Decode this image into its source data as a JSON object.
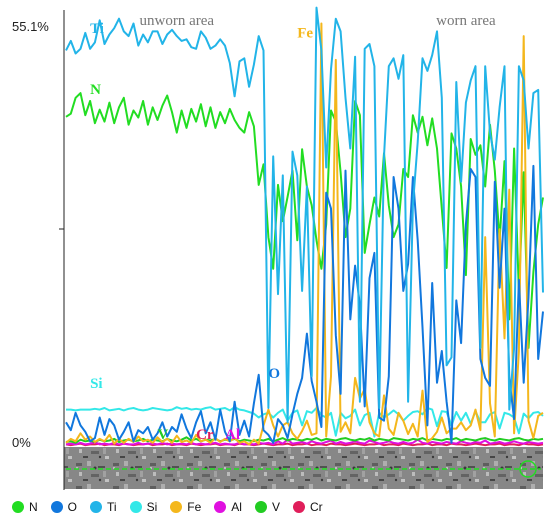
{
  "chart_data": {
    "type": "line",
    "y_tick_labels": [
      "55.1%",
      "0%"
    ],
    "ylim": [
      0,
      55.1
    ],
    "x": [
      1,
      2,
      3,
      4,
      5,
      6,
      7,
      8,
      9,
      10,
      11,
      12,
      13,
      14,
      15,
      16,
      17,
      18,
      19,
      20,
      21,
      22,
      23,
      24,
      25,
      26,
      27,
      28,
      29,
      30,
      31,
      32,
      33,
      34,
      35,
      36,
      37,
      38,
      39,
      40,
      41,
      42,
      43,
      44,
      45,
      46,
      47,
      48,
      49,
      50,
      51,
      52,
      53,
      54,
      55,
      56,
      57,
      58,
      59,
      60,
      61,
      62,
      63,
      64,
      65,
      66,
      67,
      68,
      69,
      70,
      71,
      72,
      73,
      74,
      75,
      76,
      77,
      78,
      79,
      80,
      81,
      82,
      83,
      84,
      85,
      86,
      87,
      88,
      89,
      90,
      91,
      92,
      93,
      94,
      95,
      96,
      97,
      98,
      99,
      100
    ],
    "region_labels": [
      {
        "text": "unworn area",
        "x": 24
      },
      {
        "text": "worn area",
        "x": 84
      }
    ],
    "series": [
      {
        "name": "N",
        "color": "#22dd22",
        "label_x": 6,
        "label_y": 44.5,
        "values": [
          41.6,
          42,
          44,
          44.6,
          41.8,
          43.6,
          40.8,
          42.5,
          41,
          43.4,
          40.8,
          42.8,
          44,
          40.6,
          42.4,
          41.5,
          43.6,
          40.6,
          42.8,
          41.2,
          43,
          44.3,
          42.2,
          39.6,
          42.4,
          40.2,
          42.6,
          41,
          43.2,
          40.4,
          42.8,
          40.2,
          42.2,
          40.8,
          42.6,
          41.2,
          40.2,
          39.6,
          42.2,
          40.4,
          33,
          35.6,
          26.4,
          22.4,
          33,
          28.4,
          31.5,
          34.8,
          26,
          37.5,
          32.8,
          30.4,
          26,
          22.4,
          28,
          42.4,
          41,
          34.6,
          26.4,
          30,
          43.6,
          41.8,
          24.4,
          28,
          31.4,
          29,
          37,
          30.4,
          26.4,
          28,
          35,
          34,
          41.8,
          39.6,
          41.6,
          38,
          41.4,
          37.6,
          30,
          22.5,
          39.5,
          37.6,
          32.8,
          21.6,
          38.8,
          36.8,
          38,
          32.8,
          40.6,
          34.8,
          26,
          36,
          16,
          37.6,
          19.4,
          34.6,
          12.4,
          22,
          28,
          31.4
        ]
      },
      {
        "name": "O",
        "color": "#1177dd",
        "label_x": 43,
        "label_y": 8.6,
        "values": [
          3,
          2,
          4.2,
          2.6,
          1.8,
          0.6,
          1,
          3.6,
          1.4,
          3.4,
          2.6,
          0.8,
          1.8,
          3,
          0.6,
          2,
          1.6,
          2.4,
          0.8,
          1.6,
          3,
          1.2,
          2.4,
          1.8,
          4,
          2.2,
          1,
          3,
          4.4,
          1.6,
          3,
          0.8,
          4.6,
          1.8,
          0.6,
          5.6,
          1.4,
          3.2,
          1.2,
          5.4,
          9,
          2,
          1.4,
          0.4,
          3.4,
          2.6,
          1,
          4,
          6.6,
          8.6,
          14.2,
          8.2,
          5.6,
          2.4,
          32,
          30,
          14,
          6.6,
          34.8,
          16,
          22.8,
          17.8,
          5,
          21.2,
          24.4,
          3.6,
          3.2,
          8.8,
          34,
          30,
          19.6,
          23,
          34,
          26,
          15,
          2.6,
          20.6,
          8,
          12,
          5.6,
          0.4,
          18.4,
          13,
          28,
          35,
          34,
          11,
          8.6,
          7.6,
          33.4,
          20,
          30,
          8.6,
          3.4,
          21,
          8,
          18.8,
          35.4,
          11,
          17
        ]
      },
      {
        "name": "Ti",
        "color": "#22b4e8",
        "label_x": 6,
        "label_y": 52.2,
        "values": [
          50,
          51.2,
          49.6,
          50.2,
          52.2,
          50.2,
          51,
          53.8,
          50.8,
          52,
          52.8,
          54,
          52.4,
          51.8,
          53.4,
          50.6,
          52,
          51,
          52.4,
          52.4,
          50.8,
          52,
          52.6,
          51.8,
          51.2,
          51.4,
          50.4,
          50.2,
          52.4,
          51.6,
          50.2,
          50.6,
          51.4,
          50.6,
          48.4,
          44.2,
          48.6,
          49,
          45.4,
          48.2,
          51.8,
          50,
          4.8,
          36.6,
          19.2,
          34.2,
          3,
          37.2,
          34.2,
          19.6,
          32.8,
          8.8,
          55.4,
          50,
          35.2,
          47.6,
          54,
          52.4,
          44,
          37.6,
          49.2,
          5.6,
          50.2,
          50.8,
          48,
          4.8,
          36.6,
          48,
          49,
          46.4,
          49.4,
          5.6,
          30.4,
          38.4,
          49,
          47.4,
          49.4,
          52.4,
          44,
          10.2,
          11.2,
          46,
          33.4,
          43.4,
          46.2,
          48,
          12.4,
          48,
          39.6,
          36.2,
          42.8,
          48,
          4.6,
          12.4,
          48,
          46.2,
          37.6,
          44.6,
          45,
          19.4
        ]
      },
      {
        "name": "Si",
        "color": "#33e8e8",
        "label_x": 6,
        "label_y": 7.3,
        "values": [
          4.6,
          4.6,
          4.5,
          4.6,
          4.6,
          4.6,
          4.7,
          4.6,
          4.8,
          4.5,
          4.6,
          4.7,
          4.5,
          4.7,
          4.8,
          4.6,
          4.5,
          4.6,
          4.8,
          4.7,
          4.6,
          4.5,
          4.6,
          4.9,
          4.7,
          4.8,
          4.6,
          4.7,
          4.6,
          4.8,
          4.9,
          4.6,
          4.7,
          4.8,
          4.5,
          4.9,
          4.6,
          4.5,
          4.3,
          4.1,
          3.6,
          4,
          4.2,
          3.6,
          4.2,
          4.6,
          3.2,
          4.2,
          4.5,
          2.6,
          4.4,
          4.2,
          4.8,
          3.9,
          3.6,
          4.2,
          1.3,
          4.2,
          3.5,
          3.8,
          4.6,
          2.6,
          3.9,
          4.2,
          1.2,
          4.2,
          3.6,
          4,
          4.5,
          4,
          3.2,
          3.8,
          4.3,
          4.4,
          4,
          4.8,
          4.6,
          2.5,
          4.4,
          4.3,
          2.6,
          4.3,
          3.2,
          4.2,
          2.8,
          4.4,
          3,
          3,
          4,
          4.3,
          2.2,
          4.2,
          4,
          3.6,
          1.6,
          4.1,
          3.5,
          4.2,
          4.3,
          3.8
        ]
      },
      {
        "name": "Fe",
        "color": "#f4b71c",
        "label_x": 49,
        "label_y": 51.6,
        "values": [
          0.4,
          0.9,
          0.6,
          1.6,
          0.8,
          1.2,
          0.5,
          0.9,
          0.6,
          1.4,
          0.3,
          0.9,
          0.4,
          0.9,
          0.5,
          1.2,
          0.6,
          0.8,
          0.4,
          1.1,
          0.5,
          0.9,
          0.4,
          1.3,
          0.5,
          0.7,
          0.4,
          1.4,
          0.6,
          0.8,
          0.4,
          1,
          0.5,
          0.9,
          0.6,
          1,
          0.4,
          0.6,
          0.2,
          0.8,
          0.3,
          2.6,
          4.6,
          2.6,
          1.2,
          2.6,
          3,
          1.6,
          0.9,
          1.9,
          3.2,
          1.4,
          1.6,
          53.4,
          1.2,
          8.8,
          48.8,
          1.8,
          3,
          1.6,
          8.6,
          6,
          7.2,
          3,
          1.6,
          1.2,
          6.4,
          2.2,
          1.4,
          4.2,
          3.2,
          1.5,
          2.8,
          1.2,
          7,
          0.5,
          1,
          1.8,
          3.6,
          1.6,
          2.2,
          2.2,
          3,
          2,
          2.6,
          4.6,
          2,
          26.4,
          5.4,
          1.2,
          27.4,
          13.6,
          32.4,
          1.6,
          12,
          51.8,
          3.2,
          1,
          3.8,
          4.2
        ]
      },
      {
        "name": "Al",
        "color": "#e010e0",
        "label_x": 34,
        "label_y": 0.9,
        "values": [
          0.2,
          0.3,
          0.2,
          0.4,
          0.2,
          0.3,
          0.5,
          0.2,
          0.3,
          0.2,
          0.4,
          0.2,
          0.3,
          0.2,
          0.2,
          0.4,
          0.2,
          0.3,
          0.3,
          0.2,
          0.4,
          0.2,
          0.3,
          0.2,
          0.3,
          0.2,
          0.4,
          0.2,
          0.3,
          0.2,
          0.3,
          0.4,
          0.2,
          0.3,
          0.2,
          0.2,
          0.4,
          0.2,
          0.3,
          0.2,
          0.4,
          0.3,
          0.4,
          0.2,
          0.6,
          0.3,
          0.8,
          0.3,
          0.4,
          0.5,
          0.3,
          0.6,
          0.4,
          0.3,
          0.5,
          0.7,
          0.3,
          0.5,
          0.3,
          0.4,
          0.6,
          0.4,
          0.3,
          0.7,
          0.5,
          0.3,
          0.4,
          0.6,
          0.4,
          0.3,
          0.5,
          0.3,
          0.4,
          0.8,
          0.4,
          0.3,
          0.5,
          0.4,
          0.3,
          0.5,
          0.4,
          0.3,
          0.6,
          0.4,
          0.3,
          0.5,
          0.4,
          0.7,
          0.3,
          0.4,
          0.5,
          0.3,
          0.4,
          0.6,
          0.4,
          0.3,
          0.5,
          0.4,
          0.3,
          0.4
        ]
      },
      {
        "name": "V",
        "color": "#22cc22",
        "label_x": 20,
        "label_y": 0.9,
        "values": [
          0.5,
          0.6,
          0.4,
          0.8,
          0.6,
          0.7,
          0.5,
          0.8,
          0.6,
          0.7,
          0.9,
          0.5,
          0.7,
          0.8,
          0.6,
          0.7,
          0.9,
          0.6,
          0.8,
          0.7,
          0.6,
          0.9,
          0.7,
          0.6,
          0.8,
          1.1,
          0.7,
          0.9,
          0.6,
          0.8,
          0.7,
          0.9,
          0.6,
          0.8,
          0.7,
          0.9,
          0.6,
          0.8,
          0.7,
          0.6,
          0.8,
          0.7,
          0.9,
          0.6,
          0.8,
          1,
          0.7,
          0.9,
          0.8,
          0.7,
          0.9,
          0.8,
          1,
          0.7,
          0.9,
          0.8,
          0.7,
          0.9,
          1,
          0.8,
          0.7,
          0.9,
          0.8,
          1,
          0.7,
          0.9,
          0.8,
          0.7,
          1,
          0.9,
          0.8,
          0.7,
          0.9,
          0.8,
          1,
          0.7,
          0.9,
          0.8,
          0.7,
          0.9,
          0.8,
          1,
          0.7,
          0.9,
          0.8,
          0.7,
          0.9,
          1,
          0.8,
          0.7,
          0.9,
          0.8,
          0.7,
          0.9,
          1,
          0.8,
          0.7,
          0.9,
          0.8,
          0.9
        ]
      },
      {
        "name": "Cr",
        "color": "#e01e5a",
        "label_x": 28,
        "label_y": 0.9,
        "values": [
          0.2,
          0.1,
          0.2,
          0.3,
          0.1,
          0.2,
          0.2,
          0.3,
          0.1,
          0.2,
          0.2,
          0.1,
          0.3,
          0.2,
          0.1,
          0.2,
          0.2,
          0.3,
          0.1,
          0.2,
          0.2,
          0.3,
          0.1,
          0.2,
          0.2,
          0.1,
          0.3,
          0.2,
          0.1,
          0.2,
          0.2,
          0.3,
          0.1,
          0.2,
          0.2,
          0.1,
          0.3,
          0.2,
          0.2,
          0.1,
          0.2,
          0.3,
          0.2,
          0.1,
          0.2,
          0.2,
          0.3,
          0.1,
          0.2,
          0.2,
          0.3,
          0.1,
          0.2,
          0.2,
          0.1,
          0.3,
          0.2,
          0.2,
          0.1,
          0.2,
          0.3,
          0.2,
          0.1,
          0.2,
          0.2,
          0.3,
          0.1,
          0.2,
          0.2,
          0.1,
          0.3,
          0.2,
          0.1,
          0.2,
          0.2,
          0.3,
          0.1,
          0.2,
          0.2,
          0.1,
          0.3,
          0.2,
          0.2,
          0.1,
          0.2,
          0.3,
          0.2,
          0.1,
          0.2,
          0.2,
          0.3,
          0.1,
          0.2,
          0.2,
          0.1,
          0.3,
          0.2,
          0.2,
          0.1,
          0.2
        ]
      }
    ],
    "legend": [
      "N",
      "O",
      "Ti",
      "Si",
      "Fe",
      "Al",
      "V",
      "Cr"
    ],
    "legend_placement": "bottom",
    "grid": false,
    "background_image": "SEM micrograph strip of the scanned track below the plot"
  }
}
